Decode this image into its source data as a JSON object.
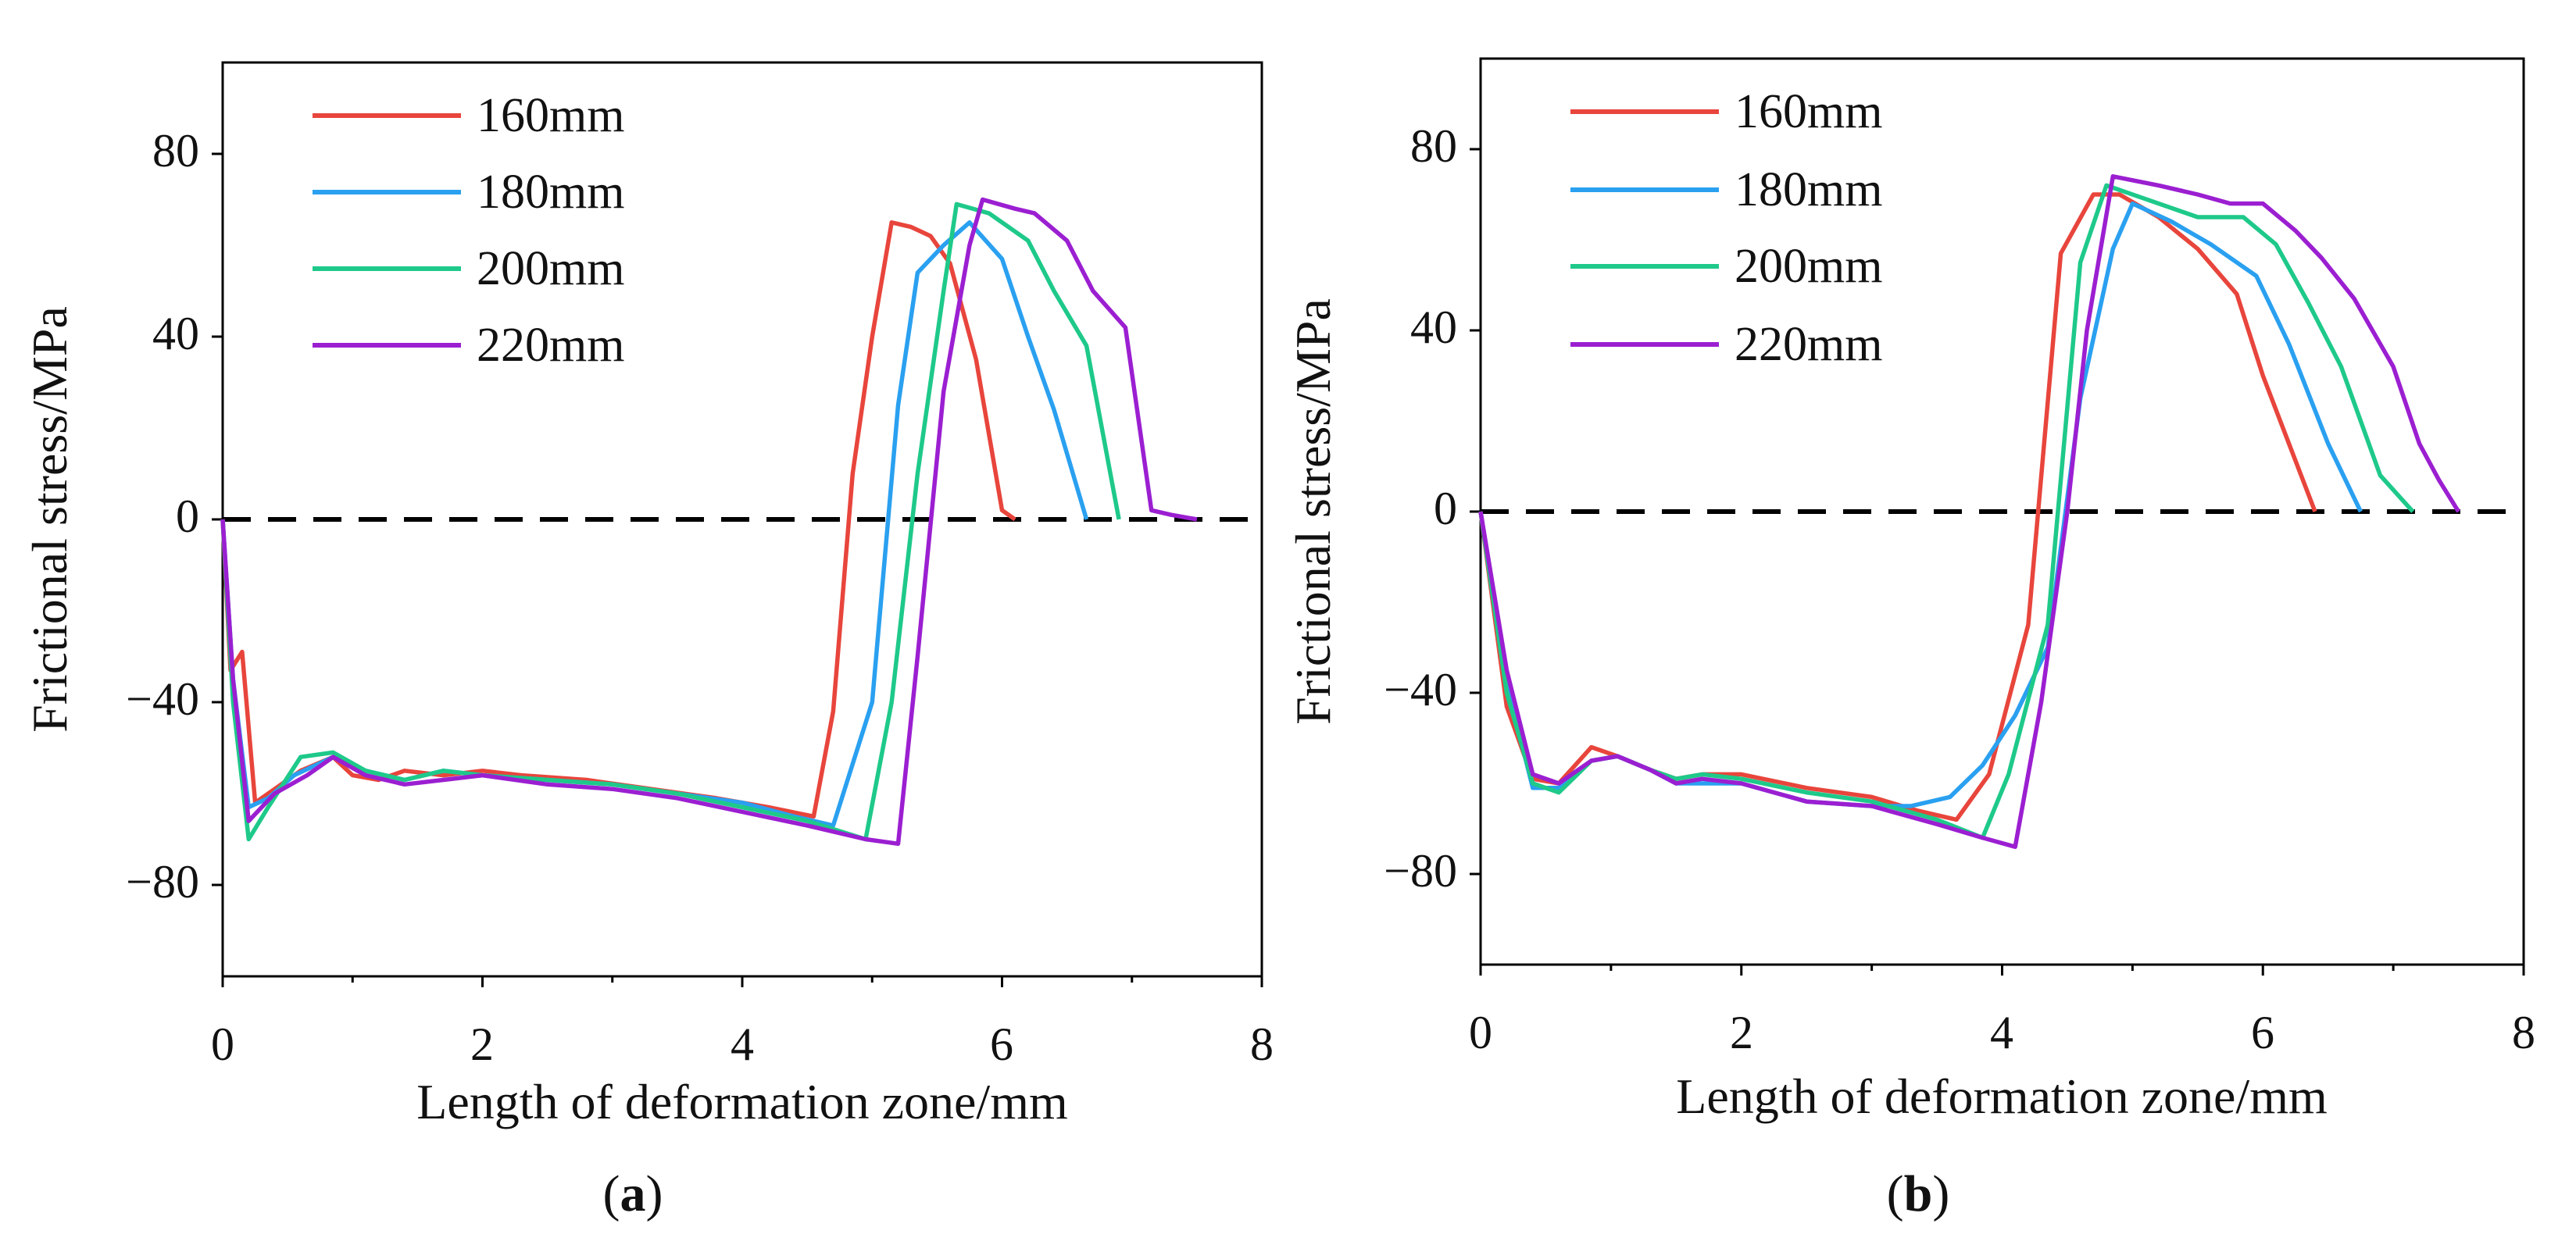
{
  "chart_data": [
    {
      "type": "line",
      "panel_label": "a",
      "title": "",
      "xlabel": "Length of deformation zone/mm",
      "ylabel": "Frictional stress/MPa",
      "xlim": [
        0,
        8
      ],
      "ylim": [
        -100,
        100
      ],
      "xticks": [
        0,
        2,
        4,
        6,
        8
      ],
      "xtick_labels": [
        "0",
        "2",
        "4",
        "6",
        "8"
      ],
      "yticks": [
        -80,
        -40,
        0,
        40,
        80
      ],
      "ytick_labels": [
        "−80",
        "−40",
        "0",
        "40",
        "80"
      ],
      "grid": false,
      "legend_position": "top-left",
      "reference_line": {
        "y": 0,
        "style": "dashed"
      },
      "series": [
        {
          "name": "160mm",
          "color": "#e8453c",
          "points": [
            [
              0,
              0
            ],
            [
              0.06,
              -33
            ],
            [
              0.15,
              -29
            ],
            [
              0.25,
              -62
            ],
            [
              0.4,
              -59
            ],
            [
              0.6,
              -55
            ],
            [
              0.85,
              -52
            ],
            [
              1.0,
              -56
            ],
            [
              1.2,
              -57
            ],
            [
              1.4,
              -55
            ],
            [
              1.7,
              -56
            ],
            [
              2.0,
              -55
            ],
            [
              2.3,
              -56
            ],
            [
              2.8,
              -57
            ],
            [
              3.3,
              -59
            ],
            [
              3.8,
              -61
            ],
            [
              4.2,
              -63
            ],
            [
              4.55,
              -65
            ],
            [
              4.7,
              -42
            ],
            [
              4.85,
              10
            ],
            [
              5.0,
              40
            ],
            [
              5.15,
              65
            ],
            [
              5.3,
              64
            ],
            [
              5.45,
              62
            ],
            [
              5.6,
              56
            ],
            [
              5.8,
              35
            ],
            [
              6.0,
              2
            ],
            [
              6.1,
              0
            ]
          ]
        },
        {
          "name": "180mm",
          "color": "#2aa0f0",
          "points": [
            [
              0,
              0
            ],
            [
              0.08,
              -35
            ],
            [
              0.2,
              -63
            ],
            [
              0.35,
              -61
            ],
            [
              0.55,
              -56
            ],
            [
              0.85,
              -52
            ],
            [
              1.1,
              -55
            ],
            [
              1.4,
              -57
            ],
            [
              1.7,
              -55
            ],
            [
              2.0,
              -56
            ],
            [
              2.5,
              -57
            ],
            [
              3.0,
              -58
            ],
            [
              3.5,
              -60
            ],
            [
              4.0,
              -62
            ],
            [
              4.4,
              -65
            ],
            [
              4.7,
              -67
            ],
            [
              5.0,
              -40
            ],
            [
              5.2,
              25
            ],
            [
              5.35,
              54
            ],
            [
              5.55,
              60
            ],
            [
              5.75,
              65
            ],
            [
              6.0,
              57
            ],
            [
              6.2,
              40
            ],
            [
              6.4,
              24
            ],
            [
              6.65,
              0
            ]
          ]
        },
        {
          "name": "200mm",
          "color": "#1ec98a",
          "points": [
            [
              0,
              0
            ],
            [
              0.08,
              -40
            ],
            [
              0.2,
              -70
            ],
            [
              0.35,
              -63
            ],
            [
              0.6,
              -52
            ],
            [
              0.85,
              -51
            ],
            [
              1.1,
              -55
            ],
            [
              1.4,
              -57
            ],
            [
              1.7,
              -55
            ],
            [
              2.0,
              -56
            ],
            [
              2.5,
              -57
            ],
            [
              3.0,
              -58
            ],
            [
              3.5,
              -60
            ],
            [
              4.0,
              -63
            ],
            [
              4.5,
              -66
            ],
            [
              4.95,
              -70
            ],
            [
              5.15,
              -40
            ],
            [
              5.35,
              10
            ],
            [
              5.55,
              50
            ],
            [
              5.65,
              69
            ],
            [
              5.9,
              67
            ],
            [
              6.2,
              61
            ],
            [
              6.4,
              50
            ],
            [
              6.65,
              38
            ],
            [
              6.9,
              0
            ]
          ]
        },
        {
          "name": "220mm",
          "color": "#9b1fd1",
          "points": [
            [
              0,
              0
            ],
            [
              0.08,
              -35
            ],
            [
              0.2,
              -66
            ],
            [
              0.4,
              -60
            ],
            [
              0.65,
              -56
            ],
            [
              0.85,
              -52
            ],
            [
              1.1,
              -56
            ],
            [
              1.4,
              -58
            ],
            [
              1.7,
              -57
            ],
            [
              2.0,
              -56
            ],
            [
              2.5,
              -58
            ],
            [
              3.0,
              -59
            ],
            [
              3.5,
              -61
            ],
            [
              4.0,
              -64
            ],
            [
              4.5,
              -67
            ],
            [
              4.95,
              -70
            ],
            [
              5.2,
              -71
            ],
            [
              5.35,
              -30
            ],
            [
              5.55,
              28
            ],
            [
              5.75,
              60
            ],
            [
              5.85,
              70
            ],
            [
              6.1,
              68
            ],
            [
              6.25,
              67
            ],
            [
              6.5,
              61
            ],
            [
              6.7,
              50
            ],
            [
              6.95,
              42
            ],
            [
              7.15,
              2
            ],
            [
              7.3,
              1
            ],
            [
              7.5,
              0
            ]
          ]
        }
      ]
    },
    {
      "type": "line",
      "panel_label": "b",
      "title": "",
      "xlabel": "Length of deformation zone/mm",
      "ylabel": "Frictional stress/MPa",
      "xlim": [
        0,
        8
      ],
      "ylim": [
        -100,
        100
      ],
      "xticks": [
        0,
        2,
        4,
        6,
        8
      ],
      "xtick_labels": [
        "0",
        "2",
        "4",
        "6",
        "8"
      ],
      "yticks": [
        -80,
        -40,
        0,
        40,
        80
      ],
      "ytick_labels": [
        "−80",
        "−40",
        "0",
        "40",
        "80"
      ],
      "grid": false,
      "legend_position": "top-left",
      "reference_line": {
        "y": 0,
        "style": "dashed"
      },
      "series": [
        {
          "name": "160mm",
          "color": "#e8453c",
          "points": [
            [
              0,
              0
            ],
            [
              0.2,
              -43
            ],
            [
              0.4,
              -59
            ],
            [
              0.6,
              -60
            ],
            [
              0.85,
              -52
            ],
            [
              1.05,
              -54
            ],
            [
              1.3,
              -57
            ],
            [
              1.5,
              -59
            ],
            [
              1.7,
              -58
            ],
            [
              2.0,
              -58
            ],
            [
              2.5,
              -61
            ],
            [
              3.0,
              -63
            ],
            [
              3.35,
              -66
            ],
            [
              3.65,
              -68
            ],
            [
              3.9,
              -58
            ],
            [
              4.2,
              -25
            ],
            [
              4.45,
              57
            ],
            [
              4.7,
              70
            ],
            [
              4.9,
              70
            ],
            [
              5.2,
              65
            ],
            [
              5.5,
              58
            ],
            [
              5.8,
              48
            ],
            [
              6.0,
              30
            ],
            [
              6.2,
              15
            ],
            [
              6.4,
              0
            ]
          ]
        },
        {
          "name": "180mm",
          "color": "#2aa0f0",
          "points": [
            [
              0,
              0
            ],
            [
              0.2,
              -38
            ],
            [
              0.4,
              -61
            ],
            [
              0.6,
              -61
            ],
            [
              0.85,
              -55
            ],
            [
              1.05,
              -54
            ],
            [
              1.3,
              -57
            ],
            [
              1.5,
              -60
            ],
            [
              1.7,
              -60
            ],
            [
              2.0,
              -60
            ],
            [
              2.5,
              -64
            ],
            [
              3.0,
              -65
            ],
            [
              3.3,
              -65
            ],
            [
              3.6,
              -63
            ],
            [
              3.85,
              -56
            ],
            [
              4.1,
              -45
            ],
            [
              4.35,
              -30
            ],
            [
              4.6,
              25
            ],
            [
              4.85,
              58
            ],
            [
              5.0,
              68
            ],
            [
              5.3,
              64
            ],
            [
              5.6,
              59
            ],
            [
              5.95,
              52
            ],
            [
              6.2,
              37
            ],
            [
              6.5,
              15
            ],
            [
              6.75,
              0
            ]
          ]
        },
        {
          "name": "200mm",
          "color": "#1ec98a",
          "points": [
            [
              0,
              0
            ],
            [
              0.2,
              -40
            ],
            [
              0.4,
              -60
            ],
            [
              0.6,
              -62
            ],
            [
              0.85,
              -55
            ],
            [
              1.05,
              -54
            ],
            [
              1.3,
              -57
            ],
            [
              1.5,
              -59
            ],
            [
              1.7,
              -58
            ],
            [
              2.0,
              -59
            ],
            [
              2.5,
              -62
            ],
            [
              3.0,
              -64
            ],
            [
              3.5,
              -68
            ],
            [
              3.85,
              -72
            ],
            [
              4.05,
              -58
            ],
            [
              4.35,
              -25
            ],
            [
              4.6,
              55
            ],
            [
              4.8,
              72
            ],
            [
              5.1,
              69
            ],
            [
              5.5,
              65
            ],
            [
              5.85,
              65
            ],
            [
              6.1,
              59
            ],
            [
              6.35,
              46
            ],
            [
              6.6,
              32
            ],
            [
              6.9,
              8
            ],
            [
              7.15,
              0
            ]
          ]
        },
        {
          "name": "220mm",
          "color": "#9b1fd1",
          "points": [
            [
              0,
              0
            ],
            [
              0.2,
              -35
            ],
            [
              0.4,
              -58
            ],
            [
              0.6,
              -60
            ],
            [
              0.85,
              -55
            ],
            [
              1.05,
              -54
            ],
            [
              1.3,
              -57
            ],
            [
              1.5,
              -60
            ],
            [
              1.7,
              -59
            ],
            [
              2.0,
              -60
            ],
            [
              2.5,
              -64
            ],
            [
              3.0,
              -65
            ],
            [
              3.5,
              -69
            ],
            [
              3.85,
              -72
            ],
            [
              4.1,
              -74
            ],
            [
              4.3,
              -42
            ],
            [
              4.5,
              0
            ],
            [
              4.65,
              40
            ],
            [
              4.85,
              74
            ],
            [
              5.2,
              72
            ],
            [
              5.5,
              70
            ],
            [
              5.75,
              68
            ],
            [
              6.0,
              68
            ],
            [
              6.25,
              62
            ],
            [
              6.45,
              56
            ],
            [
              6.7,
              47
            ],
            [
              7.0,
              32
            ],
            [
              7.2,
              15
            ],
            [
              7.35,
              7
            ],
            [
              7.5,
              0
            ]
          ]
        }
      ]
    }
  ]
}
